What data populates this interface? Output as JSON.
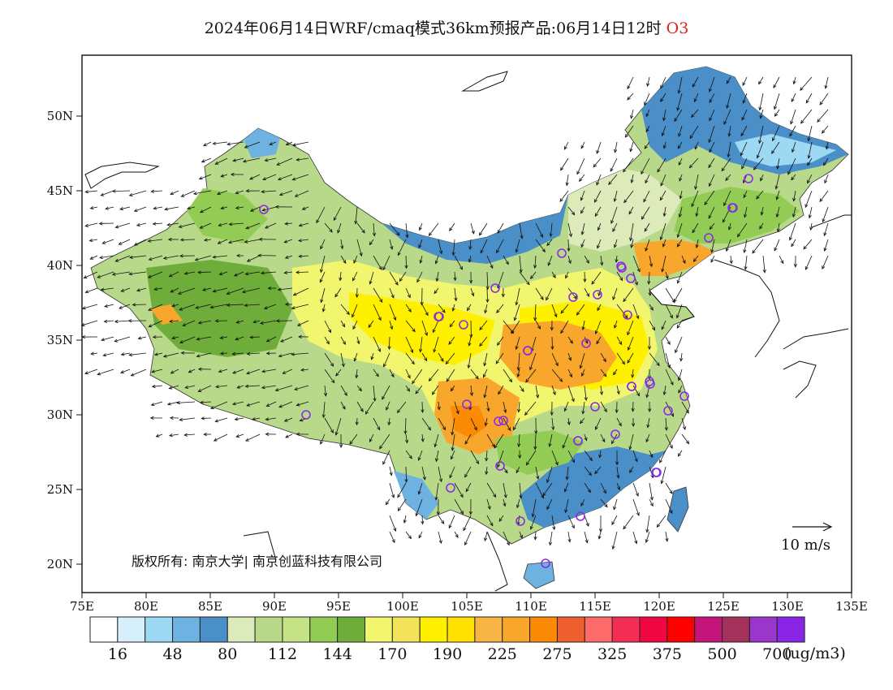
{
  "title": {
    "text": "2024年06月14日WRF/cmaq模式36km预报产品:06月14日12时",
    "pollutant": "O3"
  },
  "axes": {
    "lon_labels": [
      "75E",
      "80E",
      "85E",
      "90E",
      "95E",
      "100E",
      "105E",
      "110E",
      "115E",
      "120E",
      "125E",
      "130E",
      "135E"
    ],
    "lat_labels": [
      "50N",
      "45N",
      "40N",
      "35N",
      "30N",
      "25N",
      "20N"
    ]
  },
  "copyright": {
    "text": "版权所有: 南京大学| 南京创蓝科技有限公司"
  },
  "wind_legend": {
    "label": "10 m/s"
  },
  "colorbar": {
    "colors": [
      "#ffffff",
      "#d6effa",
      "#9ed9f4",
      "#6db2e0",
      "#4a8fc7",
      "#dcebb9",
      "#b9d98a",
      "#c6e287",
      "#93cc55",
      "#6ead3a",
      "#f2f56e",
      "#f3e35a",
      "#fff000",
      "#ffe000",
      "#f6b545",
      "#f9a72c",
      "#fb8a05",
      "#ef5e2e",
      "#ff6a6a",
      "#f42d56",
      "#f00742",
      "#ff0000",
      "#c4157a",
      "#a4305c",
      "#9b36cc",
      "#8a25e6"
    ],
    "labels": [
      "16",
      "48",
      "80",
      "112",
      "144",
      "170",
      "190",
      "225",
      "275",
      "325",
      "375",
      "500",
      "700"
    ],
    "unit": "(ug/m3)"
  },
  "monitoring_sites_count": 40
}
